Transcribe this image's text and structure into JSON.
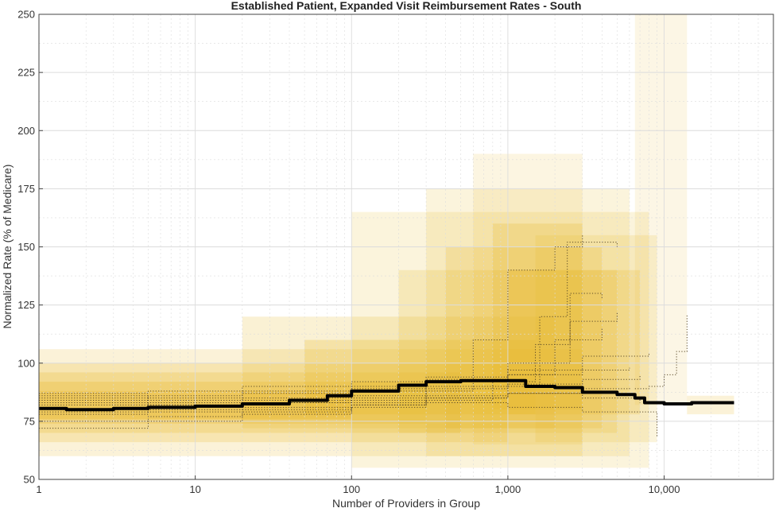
{
  "chart_data": {
    "type": "line",
    "title": "Established Patient, Expanded Visit Reimbursement Rates - South",
    "xlabel": "Number of Providers in Group",
    "ylabel": "Normalized Rate (% of Medicare)",
    "x_scale": "log",
    "xlim": [
      1,
      50000
    ],
    "ylim": [
      50,
      250
    ],
    "x_ticks": [
      1,
      10,
      100,
      1000,
      10000
    ],
    "x_tick_labels": [
      "1",
      "10",
      "100",
      "1,000",
      "10,000"
    ],
    "y_ticks": [
      50,
      75,
      100,
      125,
      150,
      175,
      200,
      225,
      250
    ],
    "y_tick_labels": [
      "50",
      "75",
      "100",
      "125",
      "150",
      "175",
      "200",
      "225",
      "250"
    ],
    "grid": true,
    "colors": {
      "band": "#e8b828",
      "median_line": "#000000",
      "dotted_lines": "#5a4a28",
      "grid": "#dcdcdc"
    },
    "series": [
      {
        "style": "solid-thick",
        "x": [
          1,
          1.5,
          2,
          3,
          5,
          10,
          20,
          40,
          70,
          100,
          200,
          300,
          500,
          700,
          1000,
          1300,
          2000,
          3000,
          5000,
          6500,
          7500,
          10000,
          15000,
          28000
        ],
        "y": [
          80.5,
          80,
          80,
          80.5,
          81,
          81.5,
          82.5,
          84,
          86,
          88,
          90.5,
          92,
          92.5,
          92.5,
          92.5,
          90,
          89.5,
          87.5,
          86.5,
          85,
          83,
          82.5,
          83,
          83
        ]
      },
      {
        "style": "dotted",
        "x": [
          1,
          5,
          20,
          100,
          300,
          1000,
          3000,
          6000
        ],
        "y": [
          86,
          84,
          85,
          88,
          93,
          95,
          97,
          98
        ]
      },
      {
        "style": "dotted",
        "x": [
          1,
          5,
          20,
          100,
          300,
          1000,
          2000,
          4000
        ],
        "y": [
          83,
          82,
          83,
          86,
          89,
          95,
          110,
          115
        ]
      },
      {
        "style": "dotted",
        "x": [
          1,
          5,
          20,
          100,
          300,
          1000,
          1600,
          2400,
          5000
        ],
        "y": [
          78,
          79,
          80,
          82,
          85,
          90,
          120,
          152,
          150
        ]
      },
      {
        "style": "dotted",
        "x": [
          1,
          5,
          20,
          100,
          300,
          800,
          1500,
          2500,
          4000
        ],
        "y": [
          75,
          77,
          79,
          81,
          84,
          92,
          108,
          130,
          128
        ]
      },
      {
        "style": "dotted",
        "x": [
          1,
          5,
          20,
          100,
          300,
          1000,
          3000,
          7000
        ],
        "y": [
          84,
          85,
          87,
          89,
          90,
          91,
          93,
          95
        ]
      },
      {
        "style": "dotted",
        "x": [
          1,
          5,
          20,
          100,
          300,
          1000,
          3000,
          9000
        ],
        "y": [
          80,
          82,
          83,
          84,
          83,
          81,
          79,
          68
        ]
      },
      {
        "style": "dotted",
        "x": [
          1,
          5,
          20,
          100,
          300,
          1000,
          3000,
          8000
        ],
        "y": [
          87,
          88,
          90,
          92,
          94,
          97,
          103,
          104
        ]
      },
      {
        "style": "dotted",
        "x": [
          1,
          5,
          20,
          100,
          300,
          600,
          1000,
          2000,
          3000
        ],
        "y": [
          79,
          80,
          81,
          83,
          88,
          110,
          140,
          150,
          155
        ]
      },
      {
        "style": "dotted",
        "x": [
          1,
          5,
          20,
          100,
          300,
          1000,
          3000,
          6000
        ],
        "y": [
          72,
          75,
          78,
          82,
          85,
          87,
          89,
          90
        ]
      },
      {
        "style": "dotted",
        "x": [
          1,
          5,
          20,
          100,
          300,
          1000,
          2500,
          5000
        ],
        "y": [
          85,
          86,
          88,
          90,
          92,
          100,
          118,
          122
        ]
      },
      {
        "style": "dotted",
        "x": [
          6500,
          8000,
          10000,
          12000,
          14000
        ],
        "y": [
          89,
          90,
          95,
          105,
          121
        ]
      },
      {
        "style": "dotted",
        "x": [
          1,
          5,
          20,
          100,
          300,
          1000,
          3000,
          7000
        ],
        "y": [
          82,
          83,
          84,
          85,
          86,
          87,
          85,
          83
        ]
      }
    ]
  }
}
